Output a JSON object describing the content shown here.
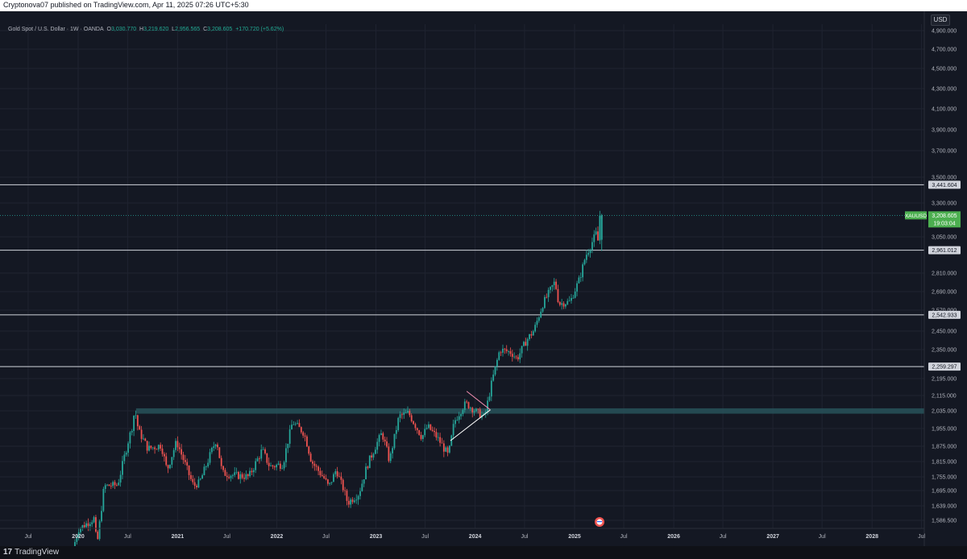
{
  "header": {
    "publisher": "Cryptonova07 published on TradingView.com, Apr 11, 2025 07:26 UTC+5:30"
  },
  "legend": {
    "symbol": "Gold Spot / U.S. Dollar · 1W · OANDA",
    "o_label": "O",
    "o": "3,030.770",
    "h_label": "H",
    "h": "3,219.620",
    "l_label": "L",
    "l": "2,956.565",
    "c_label": "C",
    "c": "3,208.605",
    "change": "+170.720 (+5.62%)"
  },
  "currency_button": "USD",
  "footer": {
    "logo_mark": "17",
    "logo_text": "TradingView"
  },
  "colors": {
    "background": "#141823",
    "up": "#26a69a",
    "down": "#ef5350",
    "grid": "#1f2330",
    "zone": "#2a5a62",
    "price_tag": "#4caf50"
  },
  "icons": {
    "event_marker": "us-flag-event-icon"
  },
  "chart_data": {
    "type": "candlestick",
    "symbol": "XAUUSD",
    "timeframe": "1W",
    "y_axis": {
      "scale": "log",
      "ticks": [
        "4,900.000",
        "4,700.000",
        "4,500.000",
        "4,300.000",
        "4,100.000",
        "3,900.000",
        "3,700.000",
        "3,500.000",
        "3,300.000",
        "3,050.000",
        "2,810.000",
        "2,690.000",
        "2,570.000",
        "2,450.000",
        "2,350.000",
        "2,195.000",
        "2,115.000",
        "2,035.000",
        "1,955.000",
        "1,875.000",
        "1,815.000",
        "1,755.000",
        "1,695.000",
        "1,639.000",
        "1,586.500"
      ],
      "range": [
        1560,
        5050
      ]
    },
    "x_axis": {
      "ticks": [
        "Jul",
        "2020",
        "Jul",
        "2021",
        "Jul",
        "2022",
        "Jul",
        "2023",
        "Jul",
        "2024",
        "Jul",
        "2025",
        "Jul",
        "2026",
        "Jul",
        "2027",
        "Jul",
        "2028",
        "Jul"
      ],
      "tick_dates": [
        "2019-07-01",
        "2020-01-01",
        "2020-07-01",
        "2021-01-01",
        "2021-07-01",
        "2022-01-01",
        "2022-07-01",
        "2023-01-01",
        "2023-07-01",
        "2024-01-01",
        "2024-07-01",
        "2025-01-01",
        "2025-07-01",
        "2026-01-01",
        "2026-07-01",
        "2027-01-01",
        "2027-07-01",
        "2028-01-01",
        "2028-07-01"
      ]
    },
    "horizontal_lines": [
      {
        "value": 3441.604,
        "label": "3,441.604"
      },
      {
        "value": 2961.012,
        "label": "2,961.012"
      },
      {
        "value": 2542.933,
        "label": "2,542.933"
      },
      {
        "value": 2259.297,
        "label": "2,259.297"
      }
    ],
    "zone": {
      "from": 2022,
      "to": 2048
    },
    "last_price": {
      "symbol_label": "XAUUSD",
      "value": 3208.605,
      "label": "3,208.605",
      "countdown": "19:03:04"
    },
    "triangle_pattern": {
      "upper": [
        {
          "date": "2023-12-01",
          "price": 2135
        },
        {
          "date": "2024-02-26",
          "price": 2040
        }
      ],
      "lower": [
        {
          "date": "2023-10-02",
          "price": 1900
        },
        {
          "date": "2024-02-26",
          "price": 2040
        }
      ]
    },
    "price_path": [
      {
        "date": "2019-12-20",
        "price": 1485
      },
      {
        "date": "2020-01-10",
        "price": 1555
      },
      {
        "date": "2020-03-09",
        "price": 1595
      },
      {
        "date": "2020-03-16",
        "price": 1485
      },
      {
        "date": "2020-04-13",
        "price": 1715
      },
      {
        "date": "2020-06-01",
        "price": 1720
      },
      {
        "date": "2020-07-27",
        "price": 1975
      },
      {
        "date": "2020-08-03",
        "price": 2045
      },
      {
        "date": "2020-08-17",
        "price": 1945
      },
      {
        "date": "2020-09-21",
        "price": 1865
      },
      {
        "date": "2020-11-09",
        "price": 1880
      },
      {
        "date": "2020-11-30",
        "price": 1780
      },
      {
        "date": "2021-01-04",
        "price": 1895
      },
      {
        "date": "2021-03-08",
        "price": 1715
      },
      {
        "date": "2021-03-29",
        "price": 1730
      },
      {
        "date": "2021-05-31",
        "price": 1905
      },
      {
        "date": "2021-06-21",
        "price": 1770
      },
      {
        "date": "2021-08-09",
        "price": 1760
      },
      {
        "date": "2021-09-27",
        "price": 1755
      },
      {
        "date": "2021-11-15",
        "price": 1860
      },
      {
        "date": "2021-12-13",
        "price": 1795
      },
      {
        "date": "2022-01-31",
        "price": 1805
      },
      {
        "date": "2022-03-07",
        "price": 1985
      },
      {
        "date": "2022-04-18",
        "price": 1935
      },
      {
        "date": "2022-05-16",
        "price": 1815
      },
      {
        "date": "2022-07-04",
        "price": 1745
      },
      {
        "date": "2022-07-18",
        "price": 1710
      },
      {
        "date": "2022-08-15",
        "price": 1785
      },
      {
        "date": "2022-09-26",
        "price": 1650
      },
      {
        "date": "2022-11-07",
        "price": 1685
      },
      {
        "date": "2022-12-05",
        "price": 1795
      },
      {
        "date": "2023-01-30",
        "price": 1935
      },
      {
        "date": "2023-02-27",
        "price": 1815
      },
      {
        "date": "2023-04-03",
        "price": 2010
      },
      {
        "date": "2023-05-08",
        "price": 2025
      },
      {
        "date": "2023-06-26",
        "price": 1915
      },
      {
        "date": "2023-07-17",
        "price": 1965
      },
      {
        "date": "2023-08-21",
        "price": 1915
      },
      {
        "date": "2023-10-02",
        "price": 1835
      },
      {
        "date": "2023-10-23",
        "price": 1985
      },
      {
        "date": "2023-12-04",
        "price": 2075
      },
      {
        "date": "2024-01-08",
        "price": 2035
      },
      {
        "date": "2024-02-12",
        "price": 2005
      },
      {
        "date": "2024-03-04",
        "price": 2145
      },
      {
        "date": "2024-04-08",
        "price": 2350
      },
      {
        "date": "2024-05-20",
        "price": 2335
      },
      {
        "date": "2024-06-10",
        "price": 2300
      },
      {
        "date": "2024-07-15",
        "price": 2400
      },
      {
        "date": "2024-08-12",
        "price": 2455
      },
      {
        "date": "2024-09-16",
        "price": 2620
      },
      {
        "date": "2024-10-28",
        "price": 2755
      },
      {
        "date": "2024-11-11",
        "price": 2610
      },
      {
        "date": "2024-12-23",
        "price": 2625
      },
      {
        "date": "2025-01-27",
        "price": 2775
      },
      {
        "date": "2025-02-17",
        "price": 2920
      },
      {
        "date": "2025-03-10",
        "price": 3000
      },
      {
        "date": "2025-03-31",
        "price": 3085
      },
      {
        "date": "2025-04-07",
        "price": 2980
      },
      {
        "date": "2025-04-11",
        "price": 3208.605
      }
    ]
  }
}
